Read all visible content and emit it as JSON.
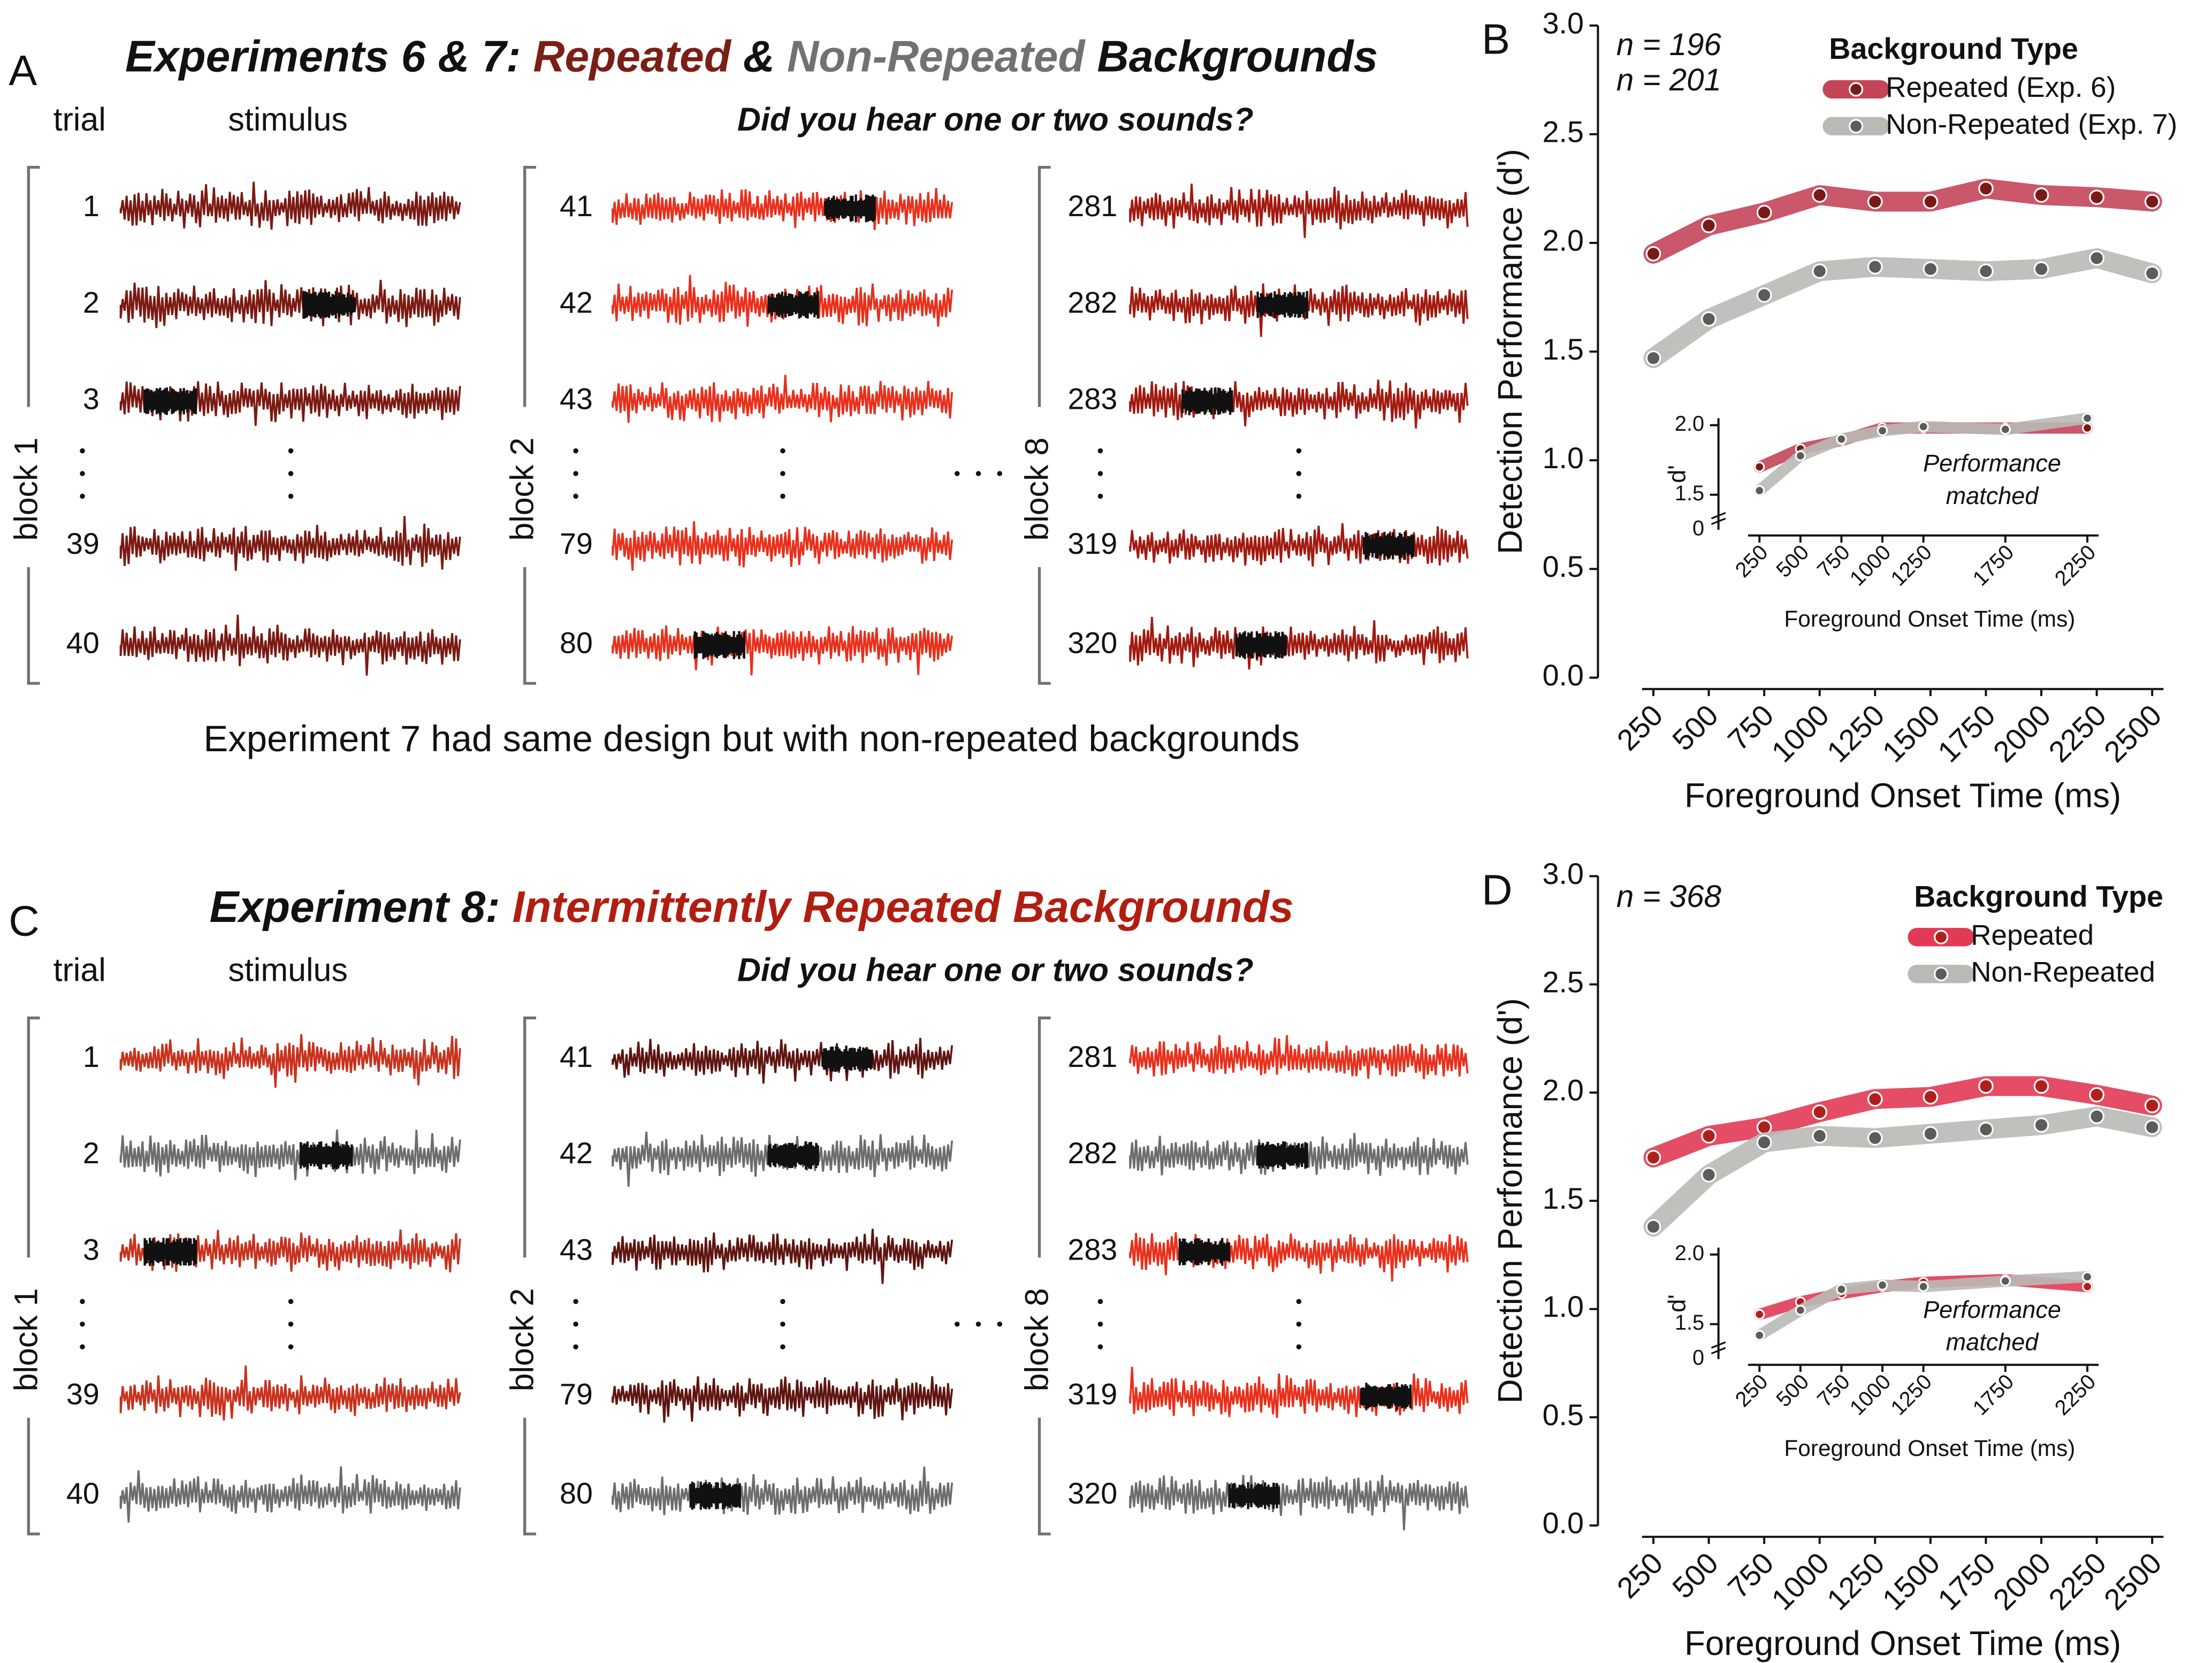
{
  "panels": [
    {
      "letter": "A",
      "title": [
        "Experiments 6 & 7:",
        "Repeated",
        "&",
        "Non-Repeated",
        "Backgrounds"
      ],
      "trial_header": "trial",
      "stimulus_header": "stimulus",
      "question": "Did you hear one or two sounds?",
      "blocks": [
        {
          "label": "block 1",
          "trials": [
            "1",
            "2",
            "3",
            "39",
            "40"
          ]
        },
        {
          "label": "block 2",
          "trials": [
            "41",
            "42",
            "43",
            "79",
            "80"
          ]
        },
        {
          "label": "block 8",
          "trials": [
            "281",
            "282",
            "283",
            "319",
            "320"
          ]
        }
      ],
      "footnote": "Experiment 7 had same design but with non-repeated backgrounds"
    },
    {
      "letter": "C",
      "title": [
        "Experiment 8:",
        "Intermittently Repeated Backgrounds"
      ],
      "trial_header": "trial",
      "stimulus_header": "stimulus",
      "question": "Did you hear one or two sounds?",
      "blocks": [
        {
          "label": "block 1",
          "trials": [
            "1",
            "2",
            "3",
            "39",
            "40"
          ]
        },
        {
          "label": "block 2",
          "trials": [
            "41",
            "42",
            "43",
            "79",
            "80"
          ]
        },
        {
          "label": "block 8",
          "trials": [
            "281",
            "282",
            "283",
            "319",
            "320"
          ]
        }
      ]
    }
  ],
  "chart_data": [
    {
      "type": "line",
      "panel": "B",
      "y_label": "Detection Performance (d')",
      "x_label": "Foreground Onset Time (ms)",
      "annotations": [
        {
          "text": "n = 196",
          "color": "#7a1f16"
        },
        {
          "text": "n = 201",
          "color": "#6e736f"
        }
      ],
      "legend_title": "Background Type",
      "x": [
        250,
        500,
        750,
        1000,
        1250,
        1500,
        1750,
        2000,
        2250,
        2500
      ],
      "xlim": [
        0,
        2750
      ],
      "xticks": [
        250,
        500,
        750,
        1000,
        1250,
        1500,
        1750,
        2000,
        2250,
        2500
      ],
      "ylim": [
        0,
        3
      ],
      "yticks": [
        {
          "value": 0,
          "label": "0.0"
        },
        0.5,
        {
          "value": 1,
          "label": "1.0"
        },
        1.5,
        {
          "value": 2,
          "label": "2.0"
        },
        2.5,
        {
          "value": 3,
          "label": "3.0"
        }
      ],
      "series": [
        {
          "name": "Repeated (Exp. 6)",
          "color": "#c4455a",
          "marker_color": "#7a1a16",
          "values": [
            1.95,
            2.08,
            2.14,
            2.22,
            2.19,
            2.19,
            2.25,
            2.22,
            2.21,
            2.19
          ]
        },
        {
          "name": "Non-Repeated (Exp. 7)",
          "color": "#b9bab6",
          "marker_color": "#5a5d5a",
          "values": [
            1.47,
            1.65,
            1.76,
            1.87,
            1.89,
            1.88,
            1.87,
            1.88,
            1.93,
            1.86
          ]
        }
      ]
    },
    {
      "type": "line",
      "panel": "B-inset",
      "y_label": "d'",
      "x_label": "Foreground Onset Time (ms)",
      "annotation_lines": [
        "Performance",
        "matched"
      ],
      "x": [
        250,
        500,
        750,
        1000,
        1250,
        1750,
        2250
      ],
      "xlim": [
        0,
        2750
      ],
      "xticks": [
        250,
        500,
        750,
        1000,
        1250,
        1750,
        2250
      ],
      "ylim": [
        1.35,
        2.05
      ],
      "yticks": [
        1.5,
        {
          "value": 2,
          "label": "2.0"
        }
      ],
      "y_floor_label": 0,
      "series": [
        {
          "color": "#c4455a",
          "marker_color": "#7a1a16",
          "values": [
            1.7,
            1.83,
            1.89,
            1.98,
            1.98,
            1.98,
            1.98
          ]
        },
        {
          "color": "#b9bab6",
          "marker_color": "#5a5d5a",
          "values": [
            1.53,
            1.78,
            1.9,
            1.96,
            1.99,
            1.97,
            2.05
          ]
        }
      ]
    },
    {
      "type": "line",
      "panel": "D",
      "y_label": "Detection Performance (d')",
      "x_label": "Foreground Onset Time (ms)",
      "annotations": [
        {
          "text": "n = 368",
          "color": "#111111"
        }
      ],
      "legend_title": "Background Type",
      "x": [
        250,
        500,
        750,
        1000,
        1250,
        1500,
        1750,
        2000,
        2250,
        2500
      ],
      "xlim": [
        0,
        2750
      ],
      "xticks": [
        250,
        500,
        750,
        1000,
        1250,
        1500,
        1750,
        2000,
        2250,
        2500
      ],
      "ylim": [
        0,
        3
      ],
      "yticks": [
        {
          "value": 0,
          "label": "0.0"
        },
        0.5,
        {
          "value": 1,
          "label": "1.0"
        },
        1.5,
        {
          "value": 2,
          "label": "2.0"
        },
        2.5,
        {
          "value": 3,
          "label": "3.0"
        }
      ],
      "series": [
        {
          "name": "Repeated",
          "color": "#e23a55",
          "marker_color": "#b0201a",
          "values": [
            1.7,
            1.8,
            1.84,
            1.91,
            1.97,
            1.98,
            2.03,
            2.03,
            1.99,
            1.94
          ]
        },
        {
          "name": "Non-Repeated",
          "color": "#b9bab6",
          "marker_color": "#5a5d5a",
          "values": [
            1.38,
            1.62,
            1.77,
            1.8,
            1.79,
            1.81,
            1.83,
            1.85,
            1.89,
            1.84
          ]
        }
      ]
    },
    {
      "type": "line",
      "panel": "D-inset",
      "y_label": "d'",
      "x_label": "Foreground Onset Time (ms)",
      "annotation_lines": [
        "Performance",
        "matched"
      ],
      "x": [
        250,
        500,
        750,
        1000,
        1250,
        1750,
        2250
      ],
      "xlim": [
        0,
        2750
      ],
      "xticks": [
        250,
        500,
        750,
        1000,
        1250,
        1750,
        2250
      ],
      "ylim": [
        1.35,
        2.05
      ],
      "yticks": [
        1.5,
        {
          "value": 2,
          "label": "2.0"
        }
      ],
      "y_floor_label": 0,
      "series": [
        {
          "color": "#e23a55",
          "marker_color": "#b0201a",
          "values": [
            1.57,
            1.66,
            1.72,
            1.77,
            1.8,
            1.82,
            1.77
          ]
        },
        {
          "color": "#b9bab6",
          "marker_color": "#5a5d5a",
          "values": [
            1.42,
            1.6,
            1.75,
            1.78,
            1.77,
            1.81,
            1.84
          ]
        }
      ]
    }
  ]
}
